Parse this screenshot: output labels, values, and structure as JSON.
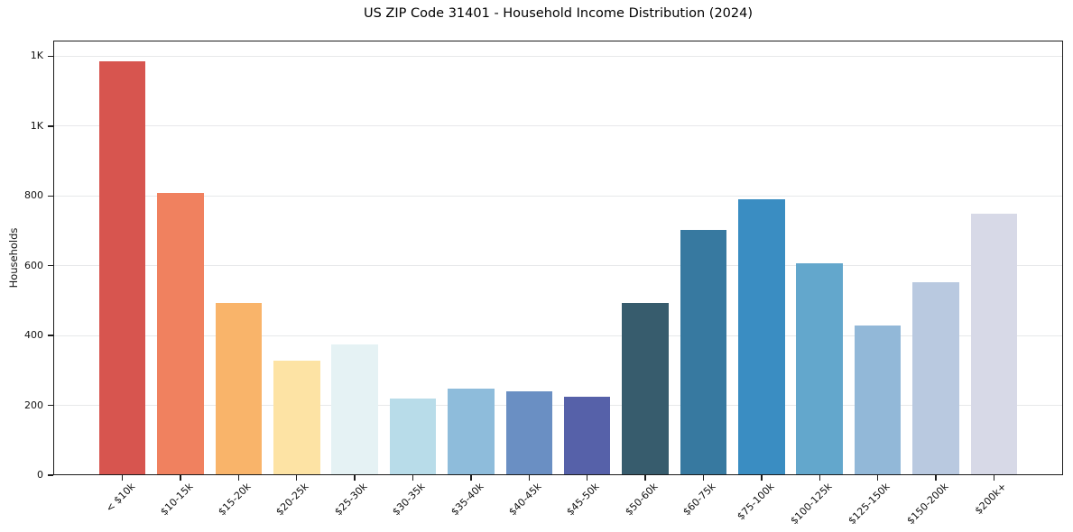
{
  "chart_data": {
    "type": "bar",
    "title": "US ZIP Code 31401 - Household Income Distribution (2024)",
    "xlabel": "",
    "ylabel": "Households",
    "categories": [
      "< $10k",
      "$10-15k",
      "$15-20k",
      "$20-25k",
      "$25-30k",
      "$30-35k",
      "$35-40k",
      "$40-45k",
      "$45-50k",
      "$50-60k",
      "$60-75k",
      "$75-100k",
      "$100-125k",
      "$125-150k",
      "$150-200k",
      "$200k+"
    ],
    "values": [
      1185,
      808,
      494,
      327,
      374,
      219,
      249,
      239,
      224,
      494,
      703,
      790,
      607,
      428,
      554,
      748
    ],
    "bar_colors": [
      "#d7554f",
      "#f0815f",
      "#f9b46a",
      "#fde3a4",
      "#e5f2f4",
      "#b8dce9",
      "#8ebcdb",
      "#6a8fc3",
      "#5661a9",
      "#375c6d",
      "#3779a0",
      "#3a8dc2",
      "#63a7cc",
      "#92b8d8",
      "#b9c9e0",
      "#d7d9e7"
    ],
    "ylim": [
      0,
      1245
    ],
    "yticks": [
      0,
      200,
      400,
      600,
      800,
      1000,
      1200
    ],
    "ytick_labels": [
      "0",
      "200",
      "400",
      "600",
      "800",
      "1K",
      "1K"
    ],
    "grid": "horizontal",
    "grid_color": "#e7e8ea",
    "legend_position": "none",
    "xtick_rotation_deg": 45
  }
}
